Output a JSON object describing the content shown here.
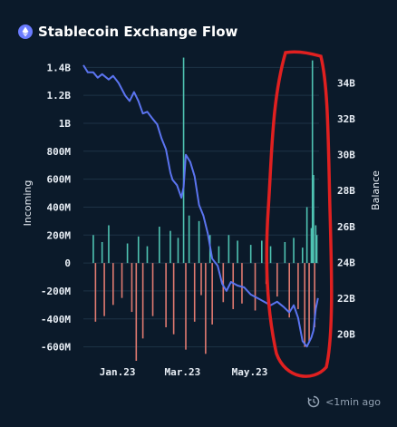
{
  "header": {
    "title": "Stablecoin Exchange Flow",
    "icon": "ethereum-icon"
  },
  "footer": {
    "updated": "<1min ago",
    "icon": "refresh-clock-icon"
  },
  "colors": {
    "background": "#0b1a2a",
    "grid": "#1e3346",
    "inflow": "#4fc3b2",
    "outflow": "#e07a70",
    "balance": "#5b74f0",
    "annotation": "#e02020",
    "axis_text": "#e8eef5"
  },
  "chart_data": {
    "type": "bar+line",
    "title": "Stablecoin Exchange Flow",
    "left_axis": {
      "label": "Incoming",
      "ylim": [
        -700000000,
        1480000000
      ],
      "tick_values": [
        -600000000,
        -400000000,
        -200000000,
        0,
        200000000,
        400000000,
        600000000,
        800000000,
        1000000000,
        1200000000,
        1400000000
      ],
      "tick_labels": [
        "-600M",
        "-400M",
        "-200M",
        "0",
        "200M",
        "400M",
        "600M",
        "800M",
        "1B",
        "1.2B",
        "1.4B"
      ]
    },
    "right_axis": {
      "label": "Balance",
      "ylim": [
        18.5,
        35.5
      ],
      "tick_values": [
        20,
        22,
        24,
        26,
        28,
        30,
        32,
        34
      ],
      "tick_labels": [
        "20B",
        "22B",
        "24B",
        "26B",
        "28B",
        "30B",
        "32B",
        "34B"
      ]
    },
    "x_axis": {
      "start": "2022-12-01",
      "end": "2023-07-03",
      "ticks": [
        "2023-01-01",
        "2023-03-01",
        "2023-05-01"
      ],
      "tick_labels": [
        "Jan.23",
        "Mar.23",
        "May.23"
      ]
    },
    "grid": true,
    "series": [
      {
        "name": "Incoming",
        "kind": "bar",
        "unit": "USD",
        "points": [
          [
            "2022-12-10",
            200000000
          ],
          [
            "2022-12-12",
            -420000000
          ],
          [
            "2022-12-18",
            150000000
          ],
          [
            "2022-12-20",
            -380000000
          ],
          [
            "2022-12-24",
            270000000
          ],
          [
            "2022-12-28",
            -300000000
          ],
          [
            "2023-01-05",
            -250000000
          ],
          [
            "2023-01-10",
            140000000
          ],
          [
            "2023-01-14",
            -350000000
          ],
          [
            "2023-01-18",
            -700000000
          ],
          [
            "2023-01-20",
            190000000
          ],
          [
            "2023-01-24",
            -540000000
          ],
          [
            "2023-01-28",
            120000000
          ],
          [
            "2023-02-02",
            -380000000
          ],
          [
            "2023-02-08",
            260000000
          ],
          [
            "2023-02-14",
            -460000000
          ],
          [
            "2023-02-18",
            230000000
          ],
          [
            "2023-02-21",
            -510000000
          ],
          [
            "2023-02-25",
            180000000
          ],
          [
            "2023-03-02",
            1470000000
          ],
          [
            "2023-03-04",
            -620000000
          ],
          [
            "2023-03-07",
            340000000
          ],
          [
            "2023-03-12",
            -420000000
          ],
          [
            "2023-03-16",
            300000000
          ],
          [
            "2023-03-18",
            -230000000
          ],
          [
            "2023-03-22",
            -650000000
          ],
          [
            "2023-03-26",
            200000000
          ],
          [
            "2023-03-28",
            -440000000
          ],
          [
            "2023-04-03",
            120000000
          ],
          [
            "2023-04-07",
            -280000000
          ],
          [
            "2023-04-12",
            200000000
          ],
          [
            "2023-04-16",
            -330000000
          ],
          [
            "2023-04-20",
            160000000
          ],
          [
            "2023-04-24",
            -290000000
          ],
          [
            "2023-05-02",
            130000000
          ],
          [
            "2023-05-06",
            -340000000
          ],
          [
            "2023-05-12",
            160000000
          ],
          [
            "2023-05-16",
            -150000000
          ],
          [
            "2023-05-20",
            120000000
          ],
          [
            "2023-05-26",
            -240000000
          ],
          [
            "2023-06-02",
            150000000
          ],
          [
            "2023-06-06",
            -390000000
          ],
          [
            "2023-06-10",
            180000000
          ],
          [
            "2023-06-14",
            -330000000
          ],
          [
            "2023-06-18",
            110000000
          ],
          [
            "2023-06-20",
            -600000000
          ],
          [
            "2023-06-22",
            400000000
          ],
          [
            "2023-06-24",
            -560000000
          ],
          [
            "2023-06-26",
            250000000
          ],
          [
            "2023-06-27",
            1450000000
          ],
          [
            "2023-06-28",
            630000000
          ],
          [
            "2023-06-29",
            -460000000
          ],
          [
            "2023-06-30",
            270000000
          ],
          [
            "2023-07-01",
            200000000
          ]
        ]
      },
      {
        "name": "Balance",
        "kind": "line",
        "unit": "USD billions",
        "points": [
          [
            "2022-12-01",
            35.0
          ],
          [
            "2022-12-05",
            34.6
          ],
          [
            "2022-12-10",
            34.6
          ],
          [
            "2022-12-14",
            34.3
          ],
          [
            "2022-12-18",
            34.5
          ],
          [
            "2022-12-24",
            34.2
          ],
          [
            "2022-12-28",
            34.4
          ],
          [
            "2023-01-02",
            34.0
          ],
          [
            "2023-01-08",
            33.3
          ],
          [
            "2023-01-12",
            33.0
          ],
          [
            "2023-01-16",
            33.5
          ],
          [
            "2023-01-20",
            33.0
          ],
          [
            "2023-01-24",
            32.3
          ],
          [
            "2023-01-28",
            32.4
          ],
          [
            "2023-02-02",
            32.0
          ],
          [
            "2023-02-06",
            31.7
          ],
          [
            "2023-02-10",
            30.9
          ],
          [
            "2023-02-14",
            30.3
          ],
          [
            "2023-02-18",
            29.0
          ],
          [
            "2023-02-20",
            28.6
          ],
          [
            "2023-02-24",
            28.3
          ],
          [
            "2023-02-28",
            27.6
          ],
          [
            "2023-03-02",
            28.2
          ],
          [
            "2023-03-04",
            30.0
          ],
          [
            "2023-03-08",
            29.6
          ],
          [
            "2023-03-12",
            28.8
          ],
          [
            "2023-03-16",
            27.2
          ],
          [
            "2023-03-20",
            26.6
          ],
          [
            "2023-03-24",
            25.6
          ],
          [
            "2023-03-28",
            24.2
          ],
          [
            "2023-04-02",
            23.8
          ],
          [
            "2023-04-06",
            22.8
          ],
          [
            "2023-04-10",
            22.4
          ],
          [
            "2023-04-14",
            22.9
          ],
          [
            "2023-04-20",
            22.7
          ],
          [
            "2023-04-26",
            22.6
          ],
          [
            "2023-05-02",
            22.2
          ],
          [
            "2023-05-08",
            22.0
          ],
          [
            "2023-05-14",
            21.8
          ],
          [
            "2023-05-20",
            21.6
          ],
          [
            "2023-05-26",
            21.8
          ],
          [
            "2023-06-01",
            21.5
          ],
          [
            "2023-06-06",
            21.2
          ],
          [
            "2023-06-10",
            21.6
          ],
          [
            "2023-06-14",
            20.9
          ],
          [
            "2023-06-18",
            19.6
          ],
          [
            "2023-06-22",
            19.3
          ],
          [
            "2023-06-26",
            19.8
          ],
          [
            "2023-06-28",
            20.2
          ],
          [
            "2023-06-30",
            21.4
          ],
          [
            "2023-07-02",
            22.0
          ]
        ]
      }
    ]
  }
}
